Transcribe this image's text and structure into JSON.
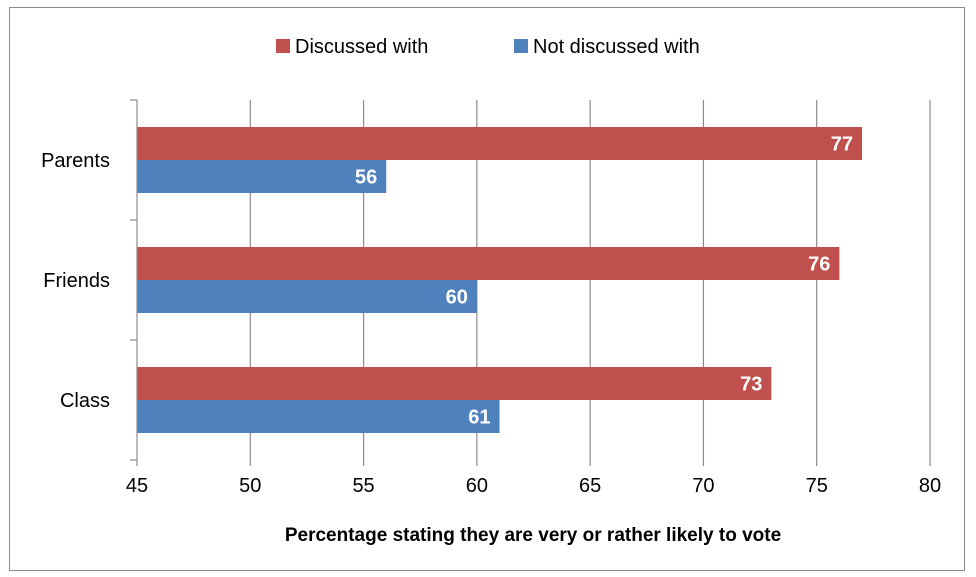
{
  "chart_data": {
    "type": "bar",
    "orientation": "horizontal",
    "categories": [
      "Parents",
      "Friends",
      "Class"
    ],
    "series": [
      {
        "name": "Discussed with",
        "values": [
          77,
          76,
          73
        ],
        "color": "#c0504d"
      },
      {
        "name": "Not discussed with",
        "values": [
          56,
          60,
          61
        ],
        "color": "#4f81bd"
      }
    ],
    "xlabel": "Percentage stating they are very or rather likely to vote",
    "ylabel": "",
    "xlim": [
      45,
      80
    ],
    "xticks": [
      "45",
      "50",
      "55",
      "60",
      "65",
      "70",
      "75",
      "80"
    ],
    "grid": "vertical",
    "legend_position": "top",
    "data_labels": true
  }
}
